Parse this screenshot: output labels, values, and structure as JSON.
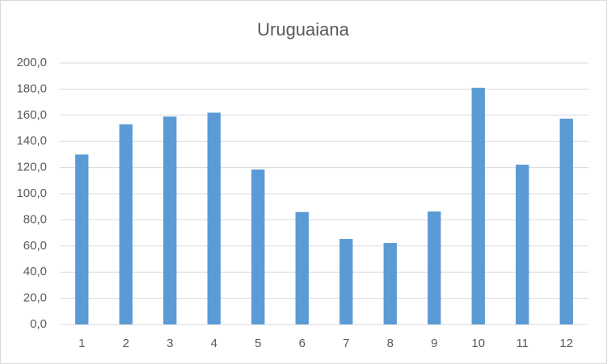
{
  "chart_data": {
    "type": "bar",
    "title": "Uruguaiana",
    "categories": [
      "1",
      "2",
      "3",
      "4",
      "5",
      "6",
      "7",
      "8",
      "9",
      "10",
      "11",
      "12"
    ],
    "values": [
      130,
      153,
      159,
      162,
      118.5,
      86,
      65.4,
      62.3,
      86.4,
      181,
      122.2,
      157.4
    ],
    "color": "#5b9bd5",
    "ylim": [
      0,
      200
    ],
    "yticks": [
      {
        "value": 0,
        "label": "0,0"
      },
      {
        "value": 20,
        "label": "20,0"
      },
      {
        "value": 40,
        "label": "40,0"
      },
      {
        "value": 60,
        "label": "60,0"
      },
      {
        "value": 80,
        "label": "80,0"
      },
      {
        "value": 100,
        "label": "100,0"
      },
      {
        "value": 120,
        "label": "120,0"
      },
      {
        "value": 140,
        "label": "140,0"
      },
      {
        "value": 160,
        "label": "160,0"
      },
      {
        "value": 180,
        "label": "180,0"
      },
      {
        "value": 200,
        "label": "200,0"
      }
    ],
    "grid": true
  }
}
